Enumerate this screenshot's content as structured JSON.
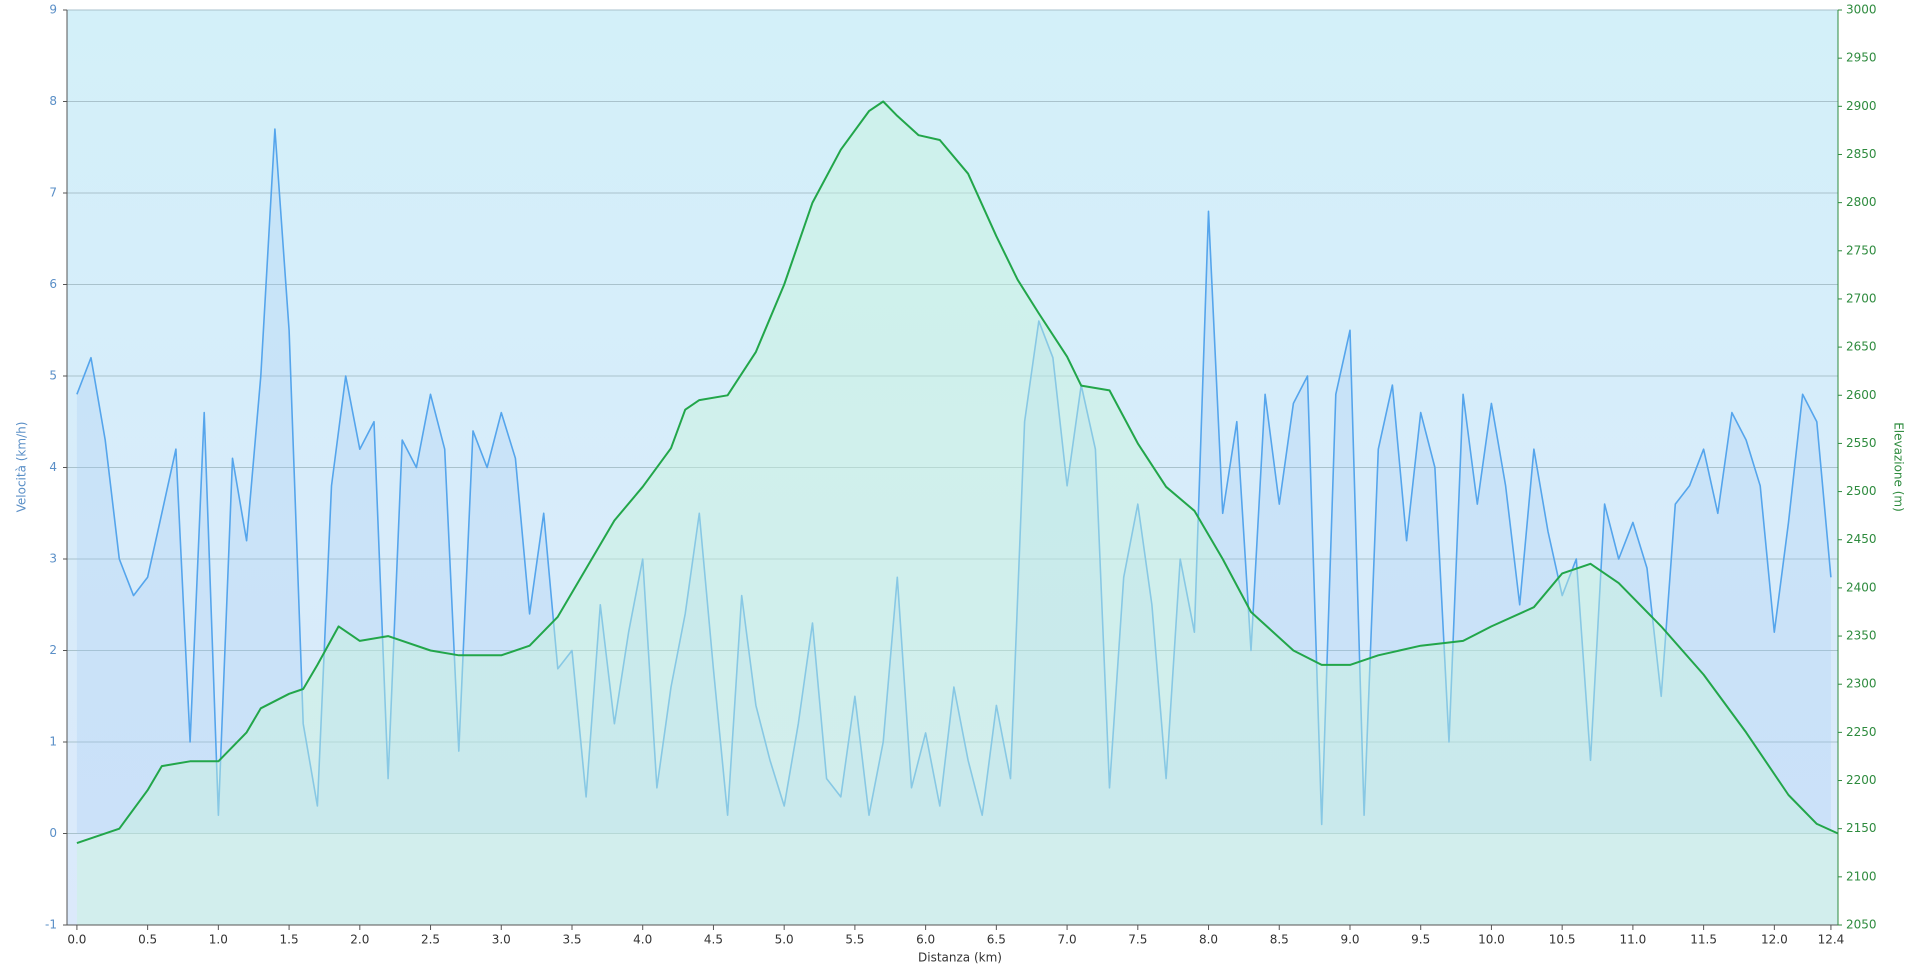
{
  "chart_data": {
    "type": "line",
    "xlabel": "Distanza  (km)",
    "ylabel": "Velocità (km/h)",
    "y2label": "Elevazione (m)",
    "xlim": [
      -0.07,
      12.45
    ],
    "xticks": [
      {
        "value": 0,
        "label": "0.0"
      },
      0.5,
      {
        "value": 1,
        "label": "1.0"
      },
      1.5,
      {
        "value": 2,
        "label": "2.0"
      },
      2.5,
      {
        "value": 3,
        "label": "3.0"
      },
      3.5,
      {
        "value": 4,
        "label": "4.0"
      },
      4.5,
      {
        "value": 5,
        "label": "5.0"
      },
      5.5,
      {
        "value": 6,
        "label": "6.0"
      },
      6.5,
      {
        "value": 7,
        "label": "7.0"
      },
      7.5,
      {
        "value": 8,
        "label": "8.0"
      },
      8.5,
      {
        "value": 9,
        "label": "9.0"
      },
      9.5,
      {
        "value": 10,
        "label": "10.0"
      },
      10.5,
      {
        "value": 11,
        "label": "11.0"
      },
      11.5,
      {
        "value": 12,
        "label": "12.0"
      },
      12.4
    ],
    "ylim": [
      -1,
      9
    ],
    "yticks": [
      -1,
      0,
      1,
      2,
      3,
      4,
      5,
      6,
      7,
      8,
      9
    ],
    "y2lim": [
      2050,
      3000
    ],
    "y2ticks": [
      2050,
      2100,
      2150,
      2200,
      2250,
      2300,
      2350,
      2400,
      2450,
      2500,
      2550,
      2600,
      2650,
      2700,
      2750,
      2800,
      2850,
      2900,
      2950,
      3000
    ],
    "grid": true,
    "series": [
      {
        "color": "#55a5ec",
        "axis": "y",
        "x": [
          0,
          0.1,
          0.2,
          0.3,
          0.4,
          0.5,
          0.6,
          0.7,
          0.8,
          0.9,
          1,
          1.1,
          1.2,
          1.3,
          1.4,
          1.5,
          1.6,
          1.7,
          1.8,
          1.9,
          2,
          2.1,
          2.2,
          2.3,
          2.4,
          2.5,
          2.6,
          2.7,
          2.8,
          2.9,
          3,
          3.1,
          3.2,
          3.3,
          3.4,
          3.5,
          3.6,
          3.7,
          3.8,
          3.9,
          4,
          4.1,
          4.2,
          4.3,
          4.4,
          4.5,
          4.6,
          4.7,
          4.8,
          4.9,
          5,
          5.1,
          5.2,
          5.3,
          5.4,
          5.5,
          5.6,
          5.7,
          5.8,
          5.9,
          6,
          6.1,
          6.2,
          6.3,
          6.4,
          6.5,
          6.6,
          6.7,
          6.8,
          6.9,
          7,
          7.1,
          7.2,
          7.3,
          7.4,
          7.5,
          7.6,
          7.7,
          7.8,
          7.9,
          8,
          8.1,
          8.2,
          8.3,
          8.4,
          8.5,
          8.6,
          8.7,
          8.8,
          8.9,
          9,
          9.1,
          9.2,
          9.3,
          9.4,
          9.5,
          9.6,
          9.7,
          9.8,
          9.9,
          10,
          10.1,
          10.2,
          10.3,
          10.4,
          10.5,
          10.6,
          10.7,
          10.8,
          10.9,
          11,
          11.1,
          11.2,
          11.3,
          11.4,
          11.5,
          11.6,
          11.7,
          11.8,
          11.9,
          12,
          12.1,
          12.2,
          12.3,
          12.4
        ],
        "values": [
          4.8,
          5.2,
          4.3,
          3.0,
          2.6,
          2.8,
          3.5,
          4.2,
          1.0,
          4.6,
          0.2,
          4.1,
          3.2,
          5.0,
          7.7,
          5.5,
          1.2,
          0.3,
          3.8,
          5.0,
          4.2,
          4.5,
          0.6,
          4.3,
          4.0,
          4.8,
          4.2,
          0.9,
          4.4,
          4.0,
          4.6,
          4.1,
          2.4,
          3.5,
          1.8,
          2.0,
          0.4,
          2.5,
          1.2,
          2.2,
          3.0,
          0.5,
          1.6,
          2.4,
          3.5,
          1.8,
          0.2,
          2.6,
          1.4,
          0.8,
          0.3,
          1.2,
          2.3,
          0.6,
          0.4,
          1.5,
          0.2,
          1.0,
          2.8,
          0.5,
          1.1,
          0.3,
          1.6,
          0.8,
          0.2,
          1.4,
          0.6,
          4.5,
          5.6,
          5.2,
          3.8,
          4.9,
          4.2,
          0.5,
          2.8,
          3.6,
          2.5,
          0.6,
          3.0,
          2.2,
          6.8,
          3.5,
          4.5,
          2.0,
          4.8,
          3.6,
          4.7,
          5.0,
          0.1,
          4.8,
          5.5,
          0.2,
          4.2,
          4.9,
          3.2,
          4.6,
          4.0,
          1.0,
          4.8,
          3.6,
          4.7,
          3.8,
          2.5,
          4.2,
          3.3,
          2.6,
          3.0,
          0.8,
          3.6,
          3.0,
          3.4,
          2.9,
          1.5,
          3.6,
          3.8,
          4.2,
          3.5,
          4.6,
          4.3,
          3.8,
          2.2,
          3.4,
          4.8,
          4.5,
          2.8
        ]
      },
      {
        "color": "#22a64a",
        "axis": "y2",
        "x": [
          0,
          0.3,
          0.5,
          0.6,
          0.8,
          1,
          1.2,
          1.3,
          1.5,
          1.6,
          1.7,
          1.85,
          2,
          2.2,
          2.5,
          2.7,
          3,
          3.2,
          3.4,
          3.6,
          3.8,
          4,
          4.2,
          4.3,
          4.4,
          4.6,
          4.8,
          5,
          5.2,
          5.4,
          5.6,
          5.7,
          5.8,
          5.95,
          6.1,
          6.3,
          6.5,
          6.65,
          6.8,
          7,
          7.1,
          7.3,
          7.5,
          7.7,
          7.9,
          8.1,
          8.3,
          8.6,
          8.8,
          9,
          9.2,
          9.5,
          9.8,
          10,
          10.3,
          10.5,
          10.7,
          10.9,
          11.2,
          11.5,
          11.8,
          12.1,
          12.3,
          12.45
        ],
        "values": [
          2135,
          2150,
          2190,
          2215,
          2220,
          2220,
          2250,
          2275,
          2290,
          2295,
          2320,
          2360,
          2345,
          2350,
          2335,
          2330,
          2330,
          2340,
          2370,
          2420,
          2470,
          2505,
          2545,
          2585,
          2595,
          2600,
          2645,
          2715,
          2800,
          2855,
          2895,
          2905,
          2890,
          2870,
          2865,
          2830,
          2765,
          2720,
          2685,
          2640,
          2610,
          2605,
          2550,
          2505,
          2480,
          2430,
          2375,
          2335,
          2320,
          2320,
          2330,
          2340,
          2345,
          2360,
          2380,
          2415,
          2425,
          2405,
          2360,
          2310,
          2250,
          2185,
          2155,
          2145
        ]
      }
    ]
  }
}
